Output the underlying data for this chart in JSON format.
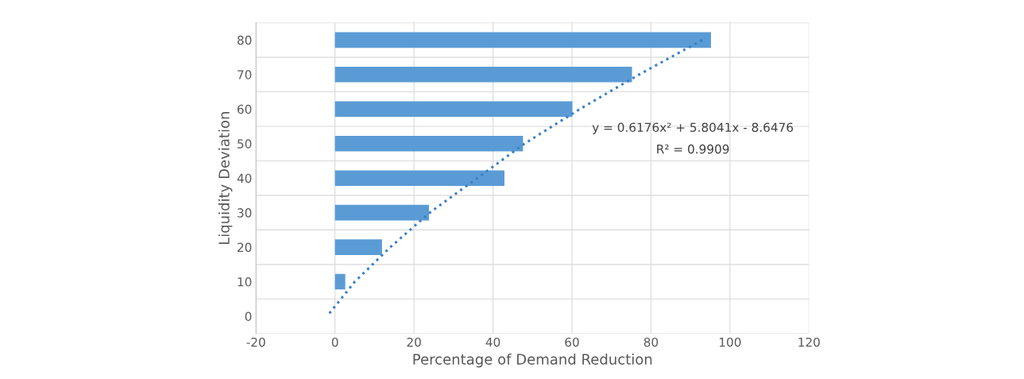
{
  "chart_data": {
    "type": "bar",
    "orientation": "horizontal",
    "xlabel": "Percentage of Demand Reduction",
    "ylabel": "Liquidity Deviation",
    "categories": [
      "80",
      "70",
      "60",
      "50",
      "40",
      "30",
      "20",
      "10",
      "0"
    ],
    "series": [
      {
        "color": "#5b9bd5",
        "values": [
          95.2,
          75.2,
          60.1,
          47.6,
          42.9,
          23.8,
          11.9,
          2.6,
          0
        ]
      },
      {
        "type": "line",
        "color": "#3c7fc4",
        "line_style": "dotted",
        "marker": "none",
        "values": [
          93,
          77,
          62,
          48,
          36,
          24,
          14,
          5,
          -2
        ]
      }
    ],
    "xlim": [
      -20,
      120
    ],
    "xticks": [
      -20,
      0,
      20,
      40,
      60,
      80,
      100,
      120
    ],
    "grid": true,
    "annotations": [
      "y = 0.6176x² + 5.8041x - 8.6476",
      "R² = 0.9909"
    ]
  }
}
